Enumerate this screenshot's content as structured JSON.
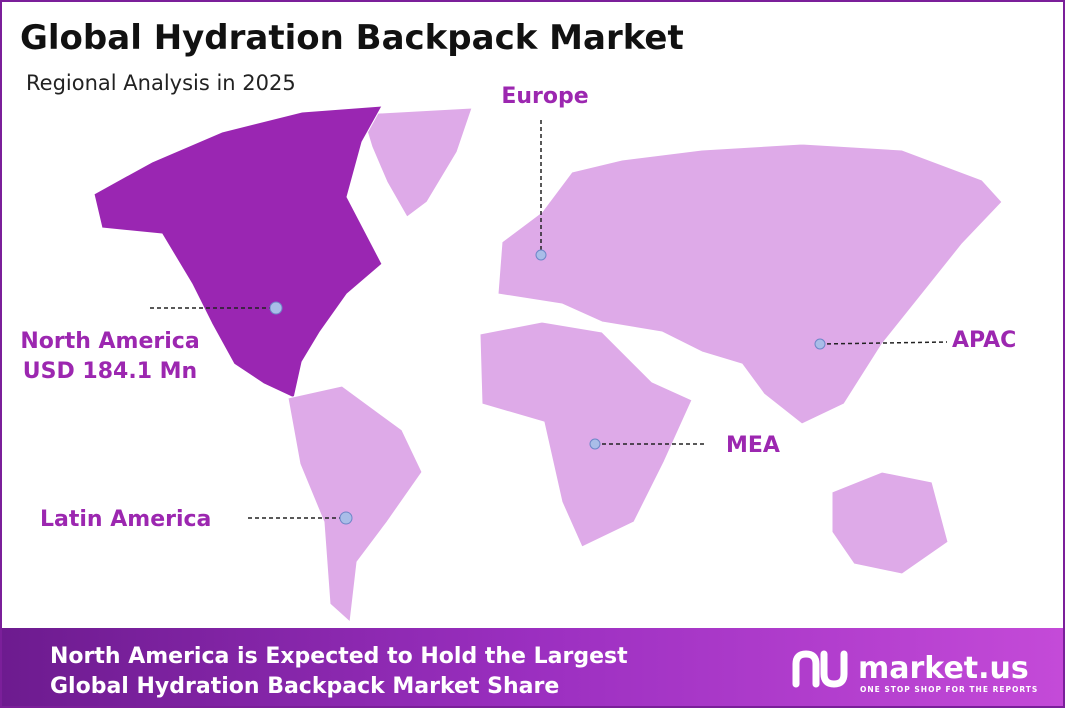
{
  "header": {
    "title": "Global Hydration Backpack Market",
    "subtitle": "Regional Analysis in 2025"
  },
  "regions": [
    {
      "label": "North America",
      "value": "USD 184.1 Mn"
    },
    {
      "label": "Europe"
    },
    {
      "label": "APAC"
    },
    {
      "label": "MEA"
    },
    {
      "label": "Latin America"
    }
  ],
  "footer": {
    "text": [
      "North America is Expected to Hold the Largest",
      "Global Hydration Backpack Market Share"
    ],
    "brand": "market.us",
    "tagline": "ONE STOP SHOP FOR THE REPORTS"
  }
}
